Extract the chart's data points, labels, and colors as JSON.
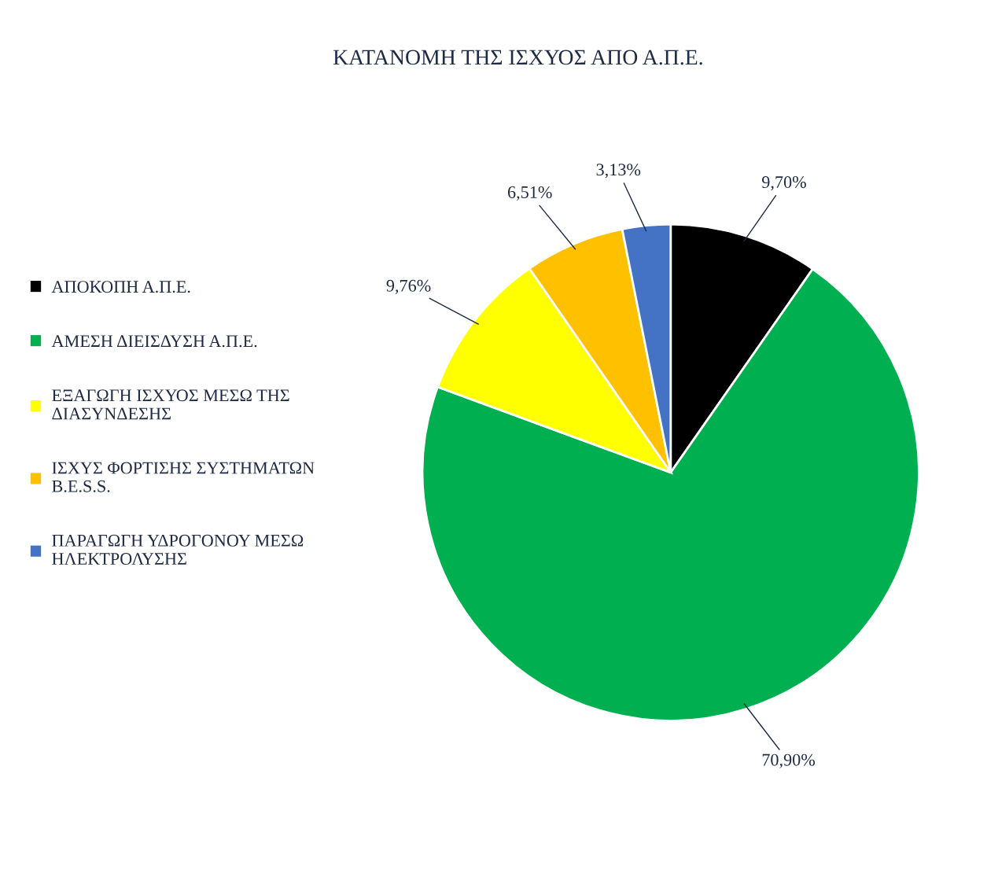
{
  "chart_data": {
    "type": "pie",
    "title": "ΚΑΤΑΝΟΜΗ ΤΗΣ ΙΣΧΥΟΣ ΑΠΟ Α.Π.Ε.",
    "categories": [
      "ΑΠΟΚΟΠΗ Α.Π.Ε.",
      "ΑΜΕΣΗ ΔΙΕΙΣΔΥΣΗ Α.Π.Ε.",
      "ΕΞΑΓΩΓΗ ΙΣΧΥΟΣ ΜΕΣΩ ΤΗΣ ΔΙΑΣΥΝΔΕΣΗΣ",
      "ΙΣΧΥΣ ΦΟΡΤΙΣΗΣ ΣΥΣΤΗΜΑΤΩΝ B.E.S.S.",
      "ΠΑΡΑΓΩΓΗ ΥΔΡΟΓΟΝΟΥ ΜΕΣΩ ΗΛΕΚΤΡΟΛΥΣΗΣ"
    ],
    "values": [
      9.7,
      70.9,
      9.76,
      6.51,
      3.13
    ],
    "value_labels": [
      "9,70%",
      "70,90%",
      "9,76%",
      "6,51%",
      "3,13%"
    ],
    "colors": [
      "#000000",
      "#00b050",
      "#ffff00",
      "#ffc000",
      "#4472c4"
    ],
    "legend": "left"
  }
}
